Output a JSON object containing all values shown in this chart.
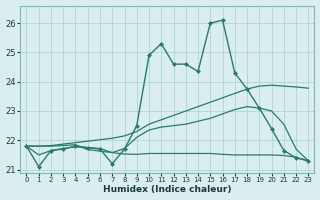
{
  "x": [
    0,
    1,
    2,
    3,
    4,
    5,
    6,
    7,
    8,
    9,
    10,
    11,
    12,
    13,
    14,
    15,
    16,
    17,
    18,
    19,
    20,
    21,
    22,
    23
  ],
  "line_main": [
    21.8,
    21.1,
    21.65,
    21.7,
    21.8,
    21.75,
    21.7,
    21.2,
    21.7,
    22.5,
    24.9,
    25.3,
    24.6,
    24.6,
    24.35,
    26.0,
    26.1,
    24.3,
    23.75,
    23.1,
    22.4,
    21.65,
    21.4,
    21.3
  ],
  "line_smooth1": [
    21.8,
    21.5,
    21.65,
    21.72,
    21.78,
    21.75,
    21.72,
    21.58,
    21.72,
    22.1,
    22.35,
    22.45,
    22.5,
    22.55,
    22.65,
    22.75,
    22.9,
    23.05,
    23.15,
    23.1,
    23.0,
    22.55,
    21.7,
    21.3
  ],
  "line_upper": [
    21.8,
    21.8,
    21.82,
    21.87,
    21.92,
    21.97,
    22.02,
    22.07,
    22.15,
    22.3,
    22.55,
    22.7,
    22.85,
    23.0,
    23.15,
    23.3,
    23.45,
    23.6,
    23.75,
    23.85,
    23.88,
    23.85,
    23.82,
    23.78
  ],
  "line_lower": [
    21.8,
    21.8,
    21.8,
    21.82,
    21.85,
    21.68,
    21.63,
    21.58,
    21.53,
    21.52,
    21.55,
    21.55,
    21.55,
    21.55,
    21.55,
    21.55,
    21.52,
    21.5,
    21.5,
    21.5,
    21.5,
    21.48,
    21.42,
    21.3
  ],
  "color": "#2a7a6a",
  "bg_color": "#daeef0",
  "grid_color": "#aed4d8",
  "xlabel": "Humidex (Indice chaleur)",
  "ylim": [
    20.9,
    26.6
  ],
  "xlim": [
    -0.5,
    23.5
  ],
  "yticks": [
    21,
    22,
    23,
    24,
    25,
    26
  ],
  "xticks": [
    0,
    1,
    2,
    3,
    4,
    5,
    6,
    7,
    8,
    9,
    10,
    11,
    12,
    13,
    14,
    15,
    16,
    17,
    18,
    19,
    20,
    21,
    22,
    23
  ]
}
